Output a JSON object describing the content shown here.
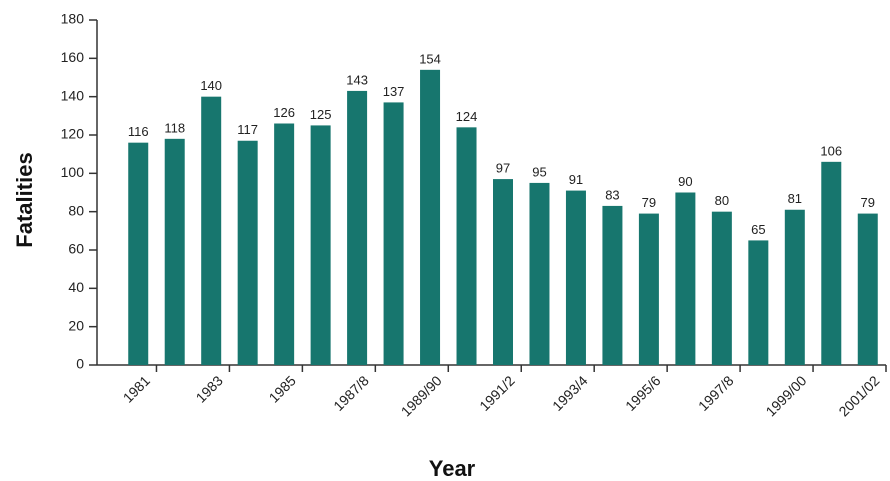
{
  "chart_data": {
    "type": "bar",
    "xlabel": "Year",
    "ylabel": "Fatalities",
    "categories": [
      "1981",
      null,
      "1983",
      null,
      "1985",
      null,
      "1987/8",
      null,
      "1989/90",
      null,
      "1991/2",
      null,
      "1993/4",
      null,
      "1995/6",
      null,
      "1997/8",
      null,
      "1999/00",
      null,
      "2001/02"
    ],
    "values": [
      116,
      118,
      140,
      117,
      126,
      125,
      143,
      137,
      154,
      124,
      97,
      95,
      91,
      83,
      79,
      90,
      80,
      65,
      81,
      106,
      79
    ],
    "color": "#17766e",
    "ylim": [
      0,
      180
    ],
    "yticks": [
      0,
      20,
      40,
      60,
      80,
      100,
      120,
      140,
      160,
      180
    ]
  }
}
